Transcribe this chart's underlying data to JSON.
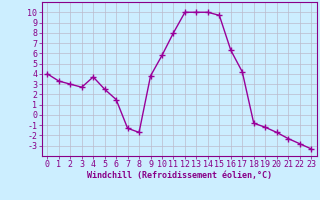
{
  "x": [
    0,
    1,
    2,
    3,
    4,
    5,
    6,
    7,
    8,
    9,
    10,
    11,
    12,
    13,
    14,
    15,
    16,
    17,
    18,
    19,
    20,
    21,
    22,
    23
  ],
  "y": [
    4.0,
    3.3,
    3.0,
    2.7,
    3.7,
    2.5,
    1.5,
    -1.3,
    -1.7,
    3.8,
    5.8,
    8.0,
    10.0,
    10.0,
    10.0,
    9.7,
    6.3,
    4.2,
    -0.8,
    -1.2,
    -1.7,
    -2.3,
    -2.8,
    -3.3
  ],
  "line_color": "#990099",
  "marker": "+",
  "marker_size": 4,
  "bg_color": "#cceeff",
  "grid_color": "#bbbbcc",
  "xlabel": "Windchill (Refroidissement éolien,°C)",
  "ylim": [
    -4,
    11
  ],
  "xlim": [
    -0.5,
    23.5
  ],
  "yticks": [
    10,
    9,
    8,
    7,
    6,
    5,
    4,
    3,
    2,
    1,
    0,
    -1,
    -2,
    -3
  ],
  "xticks": [
    0,
    1,
    2,
    3,
    4,
    5,
    6,
    7,
    8,
    9,
    10,
    11,
    12,
    13,
    14,
    15,
    16,
    17,
    18,
    19,
    20,
    21,
    22,
    23
  ],
  "tick_color": "#880088",
  "label_fontsize": 6,
  "tick_fontsize": 6,
  "linewidth": 1.0
}
